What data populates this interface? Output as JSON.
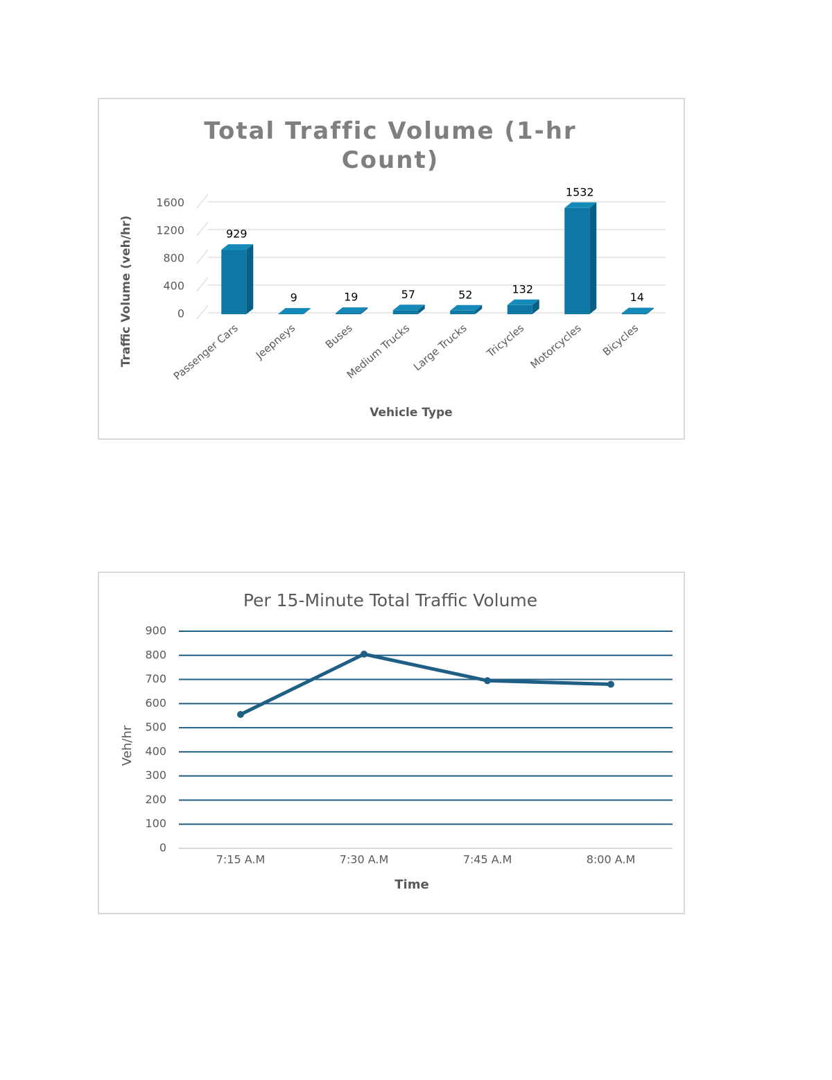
{
  "chart_data": [
    {
      "type": "bar3d",
      "title": "Total Traffic Volume (1-hr Count)",
      "x_label": "Vehicle Type",
      "y_label": "Traffic Volume (veh/hr)",
      "categories": [
        "Passenger Cars",
        "Jeepneys",
        "Buses",
        "Medium Trucks",
        "Large Trucks",
        "Tricycles",
        "Motorcycles",
        "Bicycles"
      ],
      "values": [
        929,
        9,
        19,
        57,
        52,
        132,
        1532,
        14
      ],
      "color": "#0e77a4",
      "ylim": [
        0,
        1600
      ],
      "yticks": [
        0,
        400,
        800,
        1200,
        1600
      ],
      "grid": true
    },
    {
      "type": "line",
      "title": "Per 15-Minute Total Traffic Volume",
      "x_label": "Time",
      "y_label": "Veh/hr",
      "categories": [
        "7:15 A.M",
        "7:30 A.M",
        "7:45 A.M",
        "8:00 A.M"
      ],
      "values": [
        555,
        805,
        695,
        680
      ],
      "color": "#1f5f85",
      "ylim": [
        0,
        900
      ],
      "yticks": [
        0,
        100,
        200,
        300,
        400,
        500,
        600,
        700,
        800,
        900
      ],
      "grid": true
    }
  ]
}
